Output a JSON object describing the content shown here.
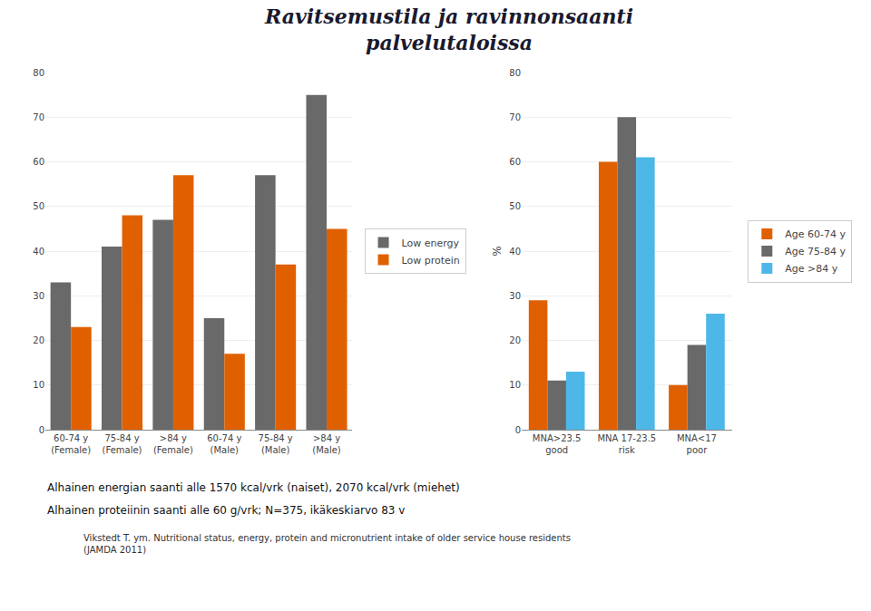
{
  "title": "Ravitsemustila ja ravinnonsaanti\npalvelutaloissa",
  "annotations": [
    "Alhainen energian saanti alle 1570 kcal/vrk (naiset), 2070 kcal/vrk (miehet)",
    "Alhainen proteiinin saanti alle 60 g/vrk; N=375, ikäkeskiarvo 83 v",
    "Vikstedt T. ym. Nutritional status, energy, protein and micronutrient intake of older service house residents\n(JAMDA 2011)"
  ],
  "chart_data": [
    {
      "type": "bar",
      "categories": [
        "60-74 y\n(Female)",
        "75-84 y\n(Female)",
        ">84 y\n(Female)",
        "60-74 y\n(Male)",
        "75-84 y\n(Male)",
        ">84 y\n(Male)"
      ],
      "series": [
        {
          "name": "Low energy",
          "color": "#696969",
          "values": [
            33,
            41,
            47,
            25,
            57,
            75
          ]
        },
        {
          "name": "Low protein",
          "color": "#E06000",
          "values": [
            23,
            48,
            57,
            17,
            37,
            45
          ]
        }
      ],
      "ylim": [
        0,
        80
      ],
      "yticks": [
        0,
        10,
        20,
        30,
        40,
        50,
        60,
        70,
        80
      ],
      "grid": true
    },
    {
      "type": "bar",
      "categories": [
        "MNA>23.5\ngood",
        "MNA 17-23.5\nrisk",
        "MNA<17\npoor"
      ],
      "series": [
        {
          "name": "Age 60-74 y",
          "color": "#E06000",
          "values": [
            29,
            60,
            10
          ]
        },
        {
          "name": "Age 75-84 y",
          "color": "#696969",
          "values": [
            11,
            70,
            19
          ]
        },
        {
          "name": "Age >84 y",
          "color": "#4db8e8",
          "values": [
            13,
            61,
            26
          ]
        }
      ],
      "ylabel": "%",
      "ylim": [
        0,
        80
      ],
      "yticks": [
        0,
        10,
        20,
        30,
        40,
        50,
        60,
        70,
        80
      ],
      "grid": true
    }
  ]
}
